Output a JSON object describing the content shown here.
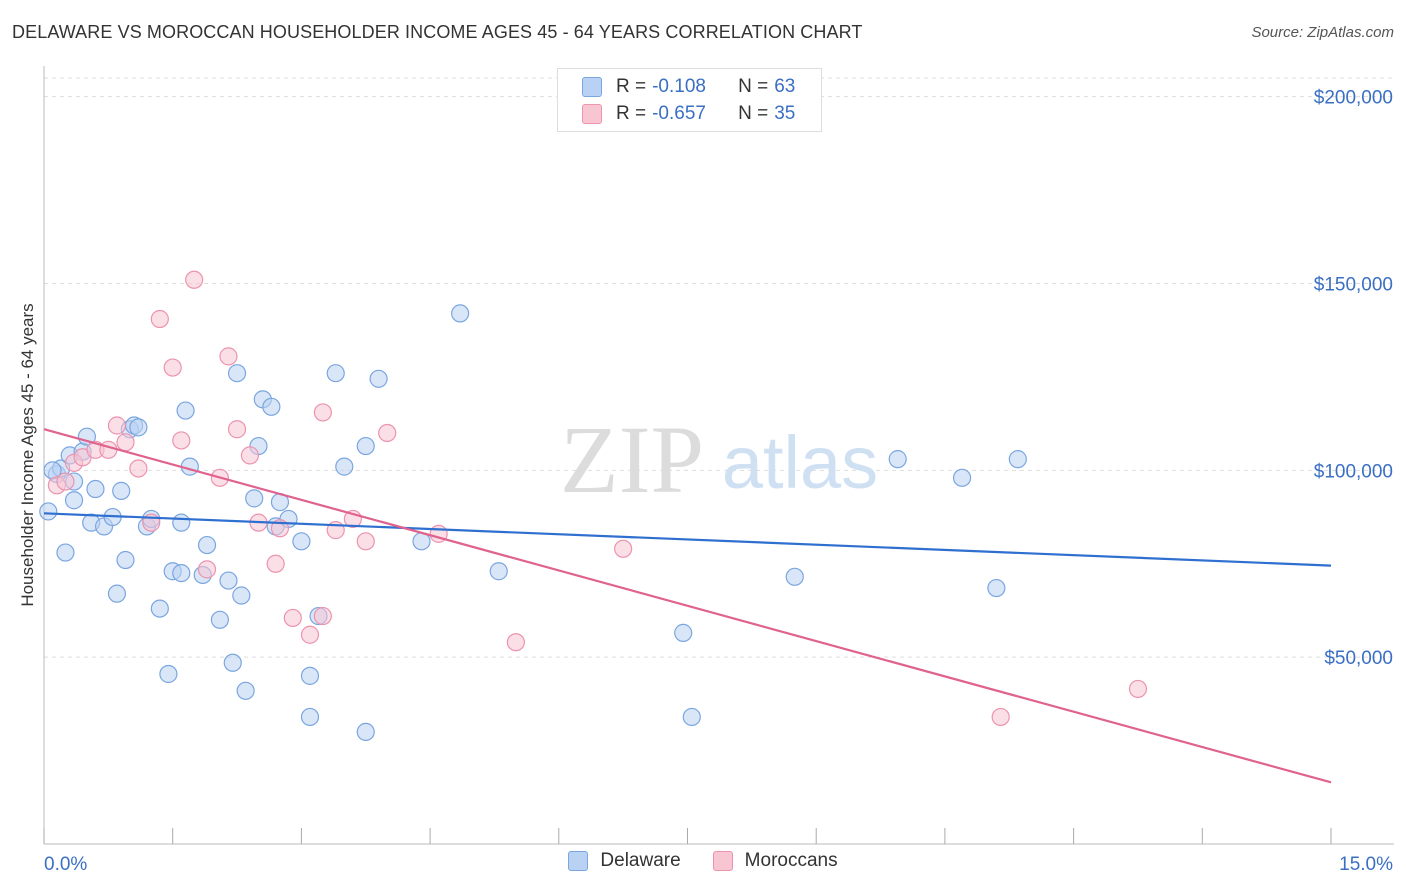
{
  "title": "DELAWARE VS MOROCCAN HOUSEHOLDER INCOME AGES 45 - 64 YEARS CORRELATION CHART",
  "source": "Source: ZipAtlas.com",
  "watermark": {
    "part1": "ZIP",
    "part2": "atlas"
  },
  "legend_top": [
    {
      "r_label": "R =",
      "r_value": "-0.108",
      "n_label": "N =",
      "n_value": "63"
    },
    {
      "r_label": "R =",
      "r_value": "-0.657",
      "n_label": "N =",
      "n_value": "35"
    }
  ],
  "legend_bottom": [
    "Delaware",
    "Moroccans"
  ],
  "colors": {
    "delaware_fill": "#b9d2f3",
    "delaware_stroke": "#7aa6e0",
    "delaware_line": "#2f6fcf",
    "moroccan_fill": "#f8c5d3",
    "moroccan_stroke": "#ec93ae",
    "moroccan_line": "#e0628e",
    "tick_text": "#3a6fc4",
    "grid": "#dddddd"
  },
  "chart_data": {
    "type": "scatter",
    "title": "DELAWARE VS MOROCCAN HOUSEHOLDER INCOME AGES 45 - 64 YEARS CORRELATION CHART",
    "xlabel": "",
    "ylabel": "Householder Income Ages 45 - 64 years",
    "xlim": [
      0,
      15
    ],
    "ylim": [
      0,
      205000
    ],
    "x_tick_labels": [
      "0.0%",
      "15.0%"
    ],
    "y_ticks": [
      50000,
      100000,
      150000,
      200000
    ],
    "y_tick_labels": [
      "$50,000",
      "$100,000",
      "$150,000",
      "$200,000"
    ],
    "grid": true,
    "legend_position": "top-center",
    "series": [
      {
        "name": "Delaware",
        "r": -0.108,
        "n": 63,
        "trend": {
          "x": [
            0,
            15
          ],
          "y": [
            88500,
            74500
          ]
        },
        "points": [
          [
            0.05,
            89000
          ],
          [
            0.15,
            99000
          ],
          [
            0.2,
            100500
          ],
          [
            0.25,
            78000
          ],
          [
            0.3,
            104000
          ],
          [
            0.35,
            92000
          ],
          [
            0.35,
            97000
          ],
          [
            0.45,
            105000
          ],
          [
            0.5,
            109000
          ],
          [
            0.55,
            86000
          ],
          [
            0.6,
            95000
          ],
          [
            0.7,
            85000
          ],
          [
            0.8,
            87500
          ],
          [
            0.85,
            67000
          ],
          [
            0.9,
            94500
          ],
          [
            0.95,
            76000
          ],
          [
            1.0,
            111000
          ],
          [
            1.05,
            112000
          ],
          [
            1.1,
            111500
          ],
          [
            1.2,
            85000
          ],
          [
            1.25,
            87000
          ],
          [
            1.35,
            63000
          ],
          [
            1.45,
            45500
          ],
          [
            1.5,
            73000
          ],
          [
            1.6,
            72500
          ],
          [
            1.6,
            86000
          ],
          [
            1.65,
            116000
          ],
          [
            1.7,
            101000
          ],
          [
            1.85,
            72000
          ],
          [
            1.9,
            80000
          ],
          [
            2.05,
            60000
          ],
          [
            2.15,
            70500
          ],
          [
            2.2,
            48500
          ],
          [
            2.25,
            126000
          ],
          [
            2.3,
            66500
          ],
          [
            2.35,
            41000
          ],
          [
            2.45,
            92500
          ],
          [
            2.5,
            106500
          ],
          [
            2.55,
            119000
          ],
          [
            2.65,
            117000
          ],
          [
            2.7,
            85000
          ],
          [
            2.75,
            91500
          ],
          [
            2.85,
            87000
          ],
          [
            3.0,
            81000
          ],
          [
            3.1,
            45000
          ],
          [
            3.1,
            34000
          ],
          [
            3.2,
            61000
          ],
          [
            3.4,
            126000
          ],
          [
            3.5,
            101000
          ],
          [
            3.75,
            106500
          ],
          [
            3.75,
            30000
          ],
          [
            3.9,
            124500
          ],
          [
            4.4,
            81000
          ],
          [
            4.85,
            142000
          ],
          [
            5.3,
            73000
          ],
          [
            7.45,
            56500
          ],
          [
            7.55,
            34000
          ],
          [
            8.75,
            71500
          ],
          [
            9.95,
            103000
          ],
          [
            10.7,
            98000
          ],
          [
            11.1,
            68500
          ],
          [
            11.35,
            103000
          ],
          [
            0.1,
            100000
          ]
        ]
      },
      {
        "name": "Moroccans",
        "r": -0.657,
        "n": 35,
        "trend": {
          "x": [
            0,
            15
          ],
          "y": [
            111000,
            16500
          ]
        },
        "points": [
          [
            0.15,
            96000
          ],
          [
            0.25,
            97000
          ],
          [
            0.35,
            102000
          ],
          [
            0.45,
            103500
          ],
          [
            0.6,
            105500
          ],
          [
            0.75,
            105500
          ],
          [
            0.85,
            112000
          ],
          [
            0.95,
            107500
          ],
          [
            1.1,
            100500
          ],
          [
            1.25,
            86000
          ],
          [
            1.35,
            140500
          ],
          [
            1.5,
            127500
          ],
          [
            1.6,
            108000
          ],
          [
            1.75,
            151000
          ],
          [
            1.9,
            73500
          ],
          [
            2.05,
            98000
          ],
          [
            2.15,
            130500
          ],
          [
            2.25,
            111000
          ],
          [
            2.4,
            104000
          ],
          [
            2.5,
            86000
          ],
          [
            2.7,
            75000
          ],
          [
            2.75,
            84500
          ],
          [
            2.9,
            60500
          ],
          [
            3.1,
            56000
          ],
          [
            3.25,
            61000
          ],
          [
            3.25,
            115500
          ],
          [
            3.4,
            84000
          ],
          [
            3.6,
            87000
          ],
          [
            3.75,
            81000
          ],
          [
            4.0,
            110000
          ],
          [
            4.6,
            83000
          ],
          [
            5.5,
            54000
          ],
          [
            6.75,
            79000
          ],
          [
            11.15,
            34000
          ],
          [
            12.75,
            41500
          ]
        ]
      }
    ]
  }
}
